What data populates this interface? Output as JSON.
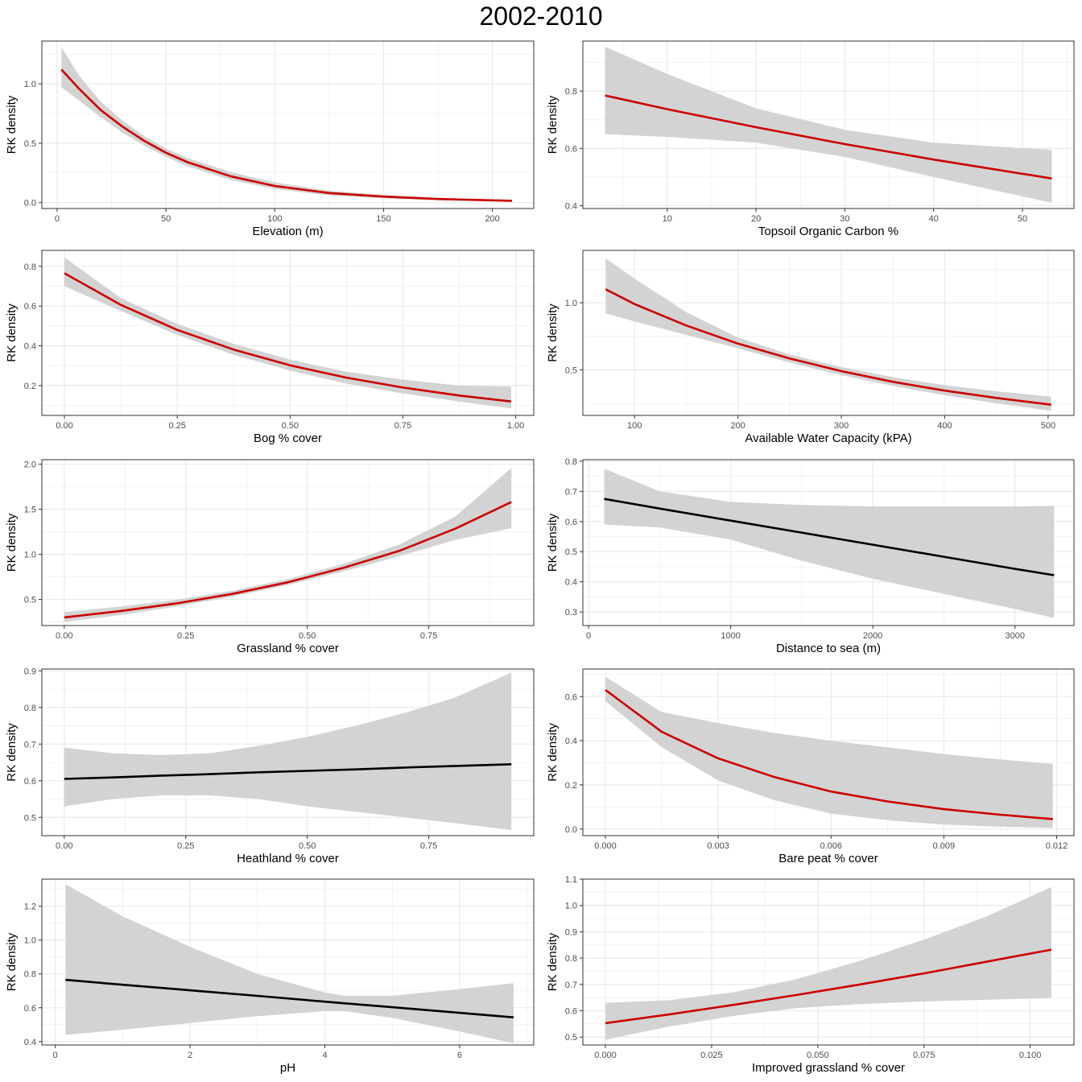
{
  "figure": {
    "title": "2002-2010"
  },
  "colors": {
    "significant": "#cc0000",
    "nonsignificant": "#000000",
    "ribbon": "#d3d3d3",
    "grid": "#ebebeb",
    "panel_border": "#333333"
  },
  "chart_data": [
    {
      "type": "line",
      "xlabel": "Elevation (m)",
      "ylabel": "RK density",
      "color": "#cc0000",
      "xlim": [
        -7,
        219
      ],
      "ylim": [
        -0.05,
        1.36
      ],
      "xticks": [
        0,
        50,
        100,
        150,
        200
      ],
      "xtick_labels": [
        "0",
        "50",
        "100",
        "150",
        "200"
      ],
      "yticks": [
        0,
        0.5,
        1.0
      ],
      "ytick_labels": [
        "0.0",
        "0.5",
        "1.0"
      ],
      "x": [
        2,
        10,
        20,
        30,
        40,
        50,
        60,
        80,
        100,
        125,
        150,
        175,
        209
      ],
      "y": [
        1.12,
        0.96,
        0.78,
        0.64,
        0.52,
        0.42,
        0.34,
        0.22,
        0.14,
        0.08,
        0.05,
        0.03,
        0.015
      ],
      "lower": [
        0.97,
        0.86,
        0.72,
        0.59,
        0.48,
        0.385,
        0.305,
        0.19,
        0.115,
        0.06,
        0.035,
        0.02,
        0.01
      ],
      "upper": [
        1.31,
        1.07,
        0.85,
        0.69,
        0.56,
        0.455,
        0.375,
        0.255,
        0.17,
        0.1,
        0.065,
        0.04,
        0.02
      ]
    },
    {
      "type": "line",
      "xlabel": "Topsoil Organic Carbon %",
      "ylabel": "RK density",
      "color": "#cc0000",
      "xlim": [
        0.5,
        55.8
      ],
      "ylim": [
        0.39,
        0.975
      ],
      "xticks": [
        10,
        20,
        30,
        40,
        50
      ],
      "xtick_labels": [
        "10",
        "20",
        "30",
        "40",
        "50"
      ],
      "yticks": [
        0.4,
        0.6,
        0.8
      ],
      "ytick_labels": [
        "0.4",
        "0.6",
        "0.8"
      ],
      "x": [
        3,
        10,
        20,
        30,
        40,
        53.3
      ],
      "y": [
        0.785,
        0.737,
        0.674,
        0.615,
        0.561,
        0.495
      ],
      "lower": [
        0.65,
        0.64,
        0.62,
        0.57,
        0.5,
        0.41
      ],
      "upper": [
        0.955,
        0.86,
        0.74,
        0.665,
        0.62,
        0.595
      ]
    },
    {
      "type": "line",
      "xlabel": "Bog % cover",
      "ylabel": "RK density",
      "color": "#cc0000",
      "xlim": [
        -0.05,
        1.04
      ],
      "ylim": [
        0.05,
        0.88
      ],
      "xticks": [
        0,
        0.25,
        0.5,
        0.75,
        1.0
      ],
      "xtick_labels": [
        "0.00",
        "0.25",
        "0.50",
        "0.75",
        "1.00"
      ],
      "yticks": [
        0.2,
        0.4,
        0.6,
        0.8
      ],
      "ytick_labels": [
        "0.2",
        "0.4",
        "0.6",
        "0.8"
      ],
      "x": [
        0,
        0.125,
        0.25,
        0.375,
        0.5,
        0.625,
        0.75,
        0.875,
        0.99
      ],
      "y": [
        0.765,
        0.606,
        0.48,
        0.381,
        0.302,
        0.24,
        0.19,
        0.15,
        0.12
      ],
      "lower": [
        0.7,
        0.575,
        0.455,
        0.355,
        0.275,
        0.21,
        0.16,
        0.12,
        0.085
      ],
      "upper": [
        0.845,
        0.64,
        0.51,
        0.41,
        0.33,
        0.27,
        0.23,
        0.2,
        0.195
      ]
    },
    {
      "type": "line",
      "xlabel": "Available Water Capacity (kPA)",
      "ylabel": "RK density",
      "color": "#cc0000",
      "xlim": [
        50,
        525
      ],
      "ylim": [
        0.16,
        1.39
      ],
      "xticks": [
        100,
        200,
        300,
        400,
        500
      ],
      "xtick_labels": [
        "100",
        "200",
        "300",
        "400",
        "500"
      ],
      "yticks": [
        0.5,
        1.0
      ],
      "ytick_labels": [
        "0.5",
        "1.0"
      ],
      "x": [
        72,
        100,
        150,
        200,
        250,
        300,
        350,
        400,
        450,
        503
      ],
      "y": [
        1.1,
        0.99,
        0.83,
        0.695,
        0.585,
        0.49,
        0.41,
        0.345,
        0.29,
        0.24
      ],
      "lower": [
        0.92,
        0.86,
        0.76,
        0.66,
        0.555,
        0.46,
        0.38,
        0.31,
        0.25,
        0.195
      ],
      "upper": [
        1.33,
        1.18,
        0.93,
        0.74,
        0.615,
        0.52,
        0.445,
        0.385,
        0.34,
        0.3
      ]
    },
    {
      "type": "line",
      "xlabel": "Grassland % cover",
      "ylabel": "RK density",
      "color": "#cc0000",
      "xlim": [
        -0.046,
        0.966
      ],
      "ylim": [
        0.21,
        2.05
      ],
      "xticks": [
        0,
        0.25,
        0.5,
        0.75
      ],
      "xtick_labels": [
        "0.00",
        "0.25",
        "0.50",
        "0.75"
      ],
      "yticks": [
        0.5,
        1.0,
        1.5,
        2.0
      ],
      "ytick_labels": [
        "0.5",
        "1.0",
        "1.5",
        "2.0"
      ],
      "x": [
        0,
        0.115,
        0.23,
        0.345,
        0.46,
        0.575,
        0.69,
        0.805,
        0.92
      ],
      "y": [
        0.3,
        0.37,
        0.455,
        0.56,
        0.69,
        0.85,
        1.04,
        1.285,
        1.58
      ],
      "lower": [
        0.25,
        0.325,
        0.42,
        0.53,
        0.66,
        0.81,
        0.98,
        1.16,
        1.29
      ],
      "upper": [
        0.36,
        0.42,
        0.495,
        0.595,
        0.725,
        0.895,
        1.11,
        1.42,
        1.96
      ]
    },
    {
      "type": "line",
      "xlabel": "Distance to sea (m)",
      "ylabel": "RK density",
      "color": "#000000",
      "xlim": [
        -40,
        3415
      ],
      "ylim": [
        0.255,
        0.805
      ],
      "xticks": [
        0,
        1000,
        2000,
        3000
      ],
      "xtick_labels": [
        "0",
        "1000",
        "2000",
        "3000"
      ],
      "yticks": [
        0.3,
        0.4,
        0.5,
        0.6,
        0.7,
        0.8
      ],
      "ytick_labels": [
        "0.3",
        "0.4",
        "0.5",
        "0.6",
        "0.7",
        "0.8"
      ],
      "x": [
        110,
        500,
        1000,
        1500,
        2000,
        2500,
        3000,
        3275
      ],
      "y": [
        0.675,
        0.643,
        0.603,
        0.563,
        0.523,
        0.483,
        0.443,
        0.422
      ],
      "lower": [
        0.59,
        0.58,
        0.54,
        0.47,
        0.41,
        0.36,
        0.31,
        0.28
      ],
      "upper": [
        0.775,
        0.7,
        0.665,
        0.655,
        0.65,
        0.65,
        0.65,
        0.652
      ]
    },
    {
      "type": "line",
      "xlabel": "Heathland % cover",
      "ylabel": "RK density",
      "color": "#000000",
      "xlim": [
        -0.046,
        0.966
      ],
      "ylim": [
        0.45,
        0.905
      ],
      "xticks": [
        0,
        0.25,
        0.5,
        0.75
      ],
      "xtick_labels": [
        "0.00",
        "0.25",
        "0.50",
        "0.75"
      ],
      "yticks": [
        0.5,
        0.6,
        0.7,
        0.8,
        0.9
      ],
      "ytick_labels": [
        "0.5",
        "0.6",
        "0.7",
        "0.8",
        "0.9"
      ],
      "x": [
        0,
        0.1,
        0.2,
        0.3,
        0.4,
        0.5,
        0.6,
        0.7,
        0.8,
        0.92
      ],
      "y": [
        0.605,
        0.609,
        0.614,
        0.618,
        0.623,
        0.627,
        0.631,
        0.636,
        0.64,
        0.645
      ],
      "lower": [
        0.53,
        0.55,
        0.56,
        0.56,
        0.55,
        0.53,
        0.515,
        0.5,
        0.485,
        0.465
      ],
      "upper": [
        0.69,
        0.675,
        0.67,
        0.675,
        0.695,
        0.72,
        0.75,
        0.785,
        0.825,
        0.895
      ]
    },
    {
      "type": "line",
      "xlabel": "Bare peat % cover",
      "ylabel": "RK density",
      "color": "#cc0000",
      "xlim": [
        -0.0006,
        0.01246
      ],
      "ylim": [
        -0.03,
        0.725
      ],
      "xticks": [
        0,
        0.003,
        0.006,
        0.009,
        0.012
      ],
      "xtick_labels": [
        "0.000",
        "0.003",
        "0.006",
        "0.009",
        "0.012"
      ],
      "yticks": [
        0,
        0.2,
        0.4,
        0.6
      ],
      "ytick_labels": [
        "0.0",
        "0.2",
        "0.4",
        "0.6"
      ],
      "x": [
        0,
        0.0015,
        0.003,
        0.0045,
        0.006,
        0.0075,
        0.009,
        0.0105,
        0.0119
      ],
      "y": [
        0.63,
        0.44,
        0.32,
        0.235,
        0.17,
        0.125,
        0.09,
        0.065,
        0.045
      ],
      "lower": [
        0.58,
        0.37,
        0.22,
        0.13,
        0.07,
        0.04,
        0.02,
        0.01,
        0.005
      ],
      "upper": [
        0.69,
        0.53,
        0.48,
        0.435,
        0.4,
        0.37,
        0.34,
        0.315,
        0.295
      ]
    },
    {
      "type": "line",
      "xlabel": "pH",
      "ylabel": "RK density",
      "color": "#000000",
      "xlim": [
        -0.2,
        7.1
      ],
      "ylim": [
        0.38,
        1.36
      ],
      "xticks": [
        0,
        2,
        4,
        6
      ],
      "xtick_labels": [
        "0",
        "2",
        "4",
        "6"
      ],
      "yticks": [
        0.4,
        0.6,
        0.8,
        1.0,
        1.2
      ],
      "ytick_labels": [
        "0.4",
        "0.6",
        "0.8",
        "1.0",
        "1.2"
      ],
      "x": [
        0.15,
        1,
        2,
        3,
        4,
        4.3,
        5,
        6,
        6.8
      ],
      "y": [
        0.765,
        0.736,
        0.703,
        0.67,
        0.636,
        0.626,
        0.603,
        0.57,
        0.543
      ],
      "lower": [
        0.44,
        0.47,
        0.51,
        0.55,
        0.58,
        0.58,
        0.54,
        0.46,
        0.39
      ],
      "upper": [
        1.33,
        1.14,
        0.96,
        0.8,
        0.69,
        0.67,
        0.67,
        0.71,
        0.745
      ]
    },
    {
      "type": "line",
      "xlabel": "Improved grassland % cover",
      "ylabel": "RK density",
      "color": "#cc0000",
      "xlim": [
        -0.0053,
        0.1103
      ],
      "ylim": [
        0.47,
        1.1
      ],
      "xticks": [
        0,
        0.025,
        0.05,
        0.075,
        0.1
      ],
      "xtick_labels": [
        "0.000",
        "0.025",
        "0.050",
        "0.075",
        "0.100"
      ],
      "yticks": [
        0.5,
        0.6,
        0.7,
        0.8,
        0.9,
        1.0,
        1.1
      ],
      "ytick_labels": [
        "0.5",
        "0.6",
        "0.7",
        "0.8",
        "0.9",
        "1.0",
        "1.1"
      ],
      "x": [
        0,
        0.015,
        0.03,
        0.045,
        0.06,
        0.075,
        0.09,
        0.105
      ],
      "y": [
        0.553,
        0.586,
        0.622,
        0.66,
        0.7,
        0.742,
        0.787,
        0.832
      ],
      "lower": [
        0.49,
        0.54,
        0.58,
        0.61,
        0.625,
        0.635,
        0.642,
        0.648
      ],
      "upper": [
        0.63,
        0.64,
        0.67,
        0.72,
        0.79,
        0.87,
        0.96,
        1.07
      ]
    }
  ]
}
